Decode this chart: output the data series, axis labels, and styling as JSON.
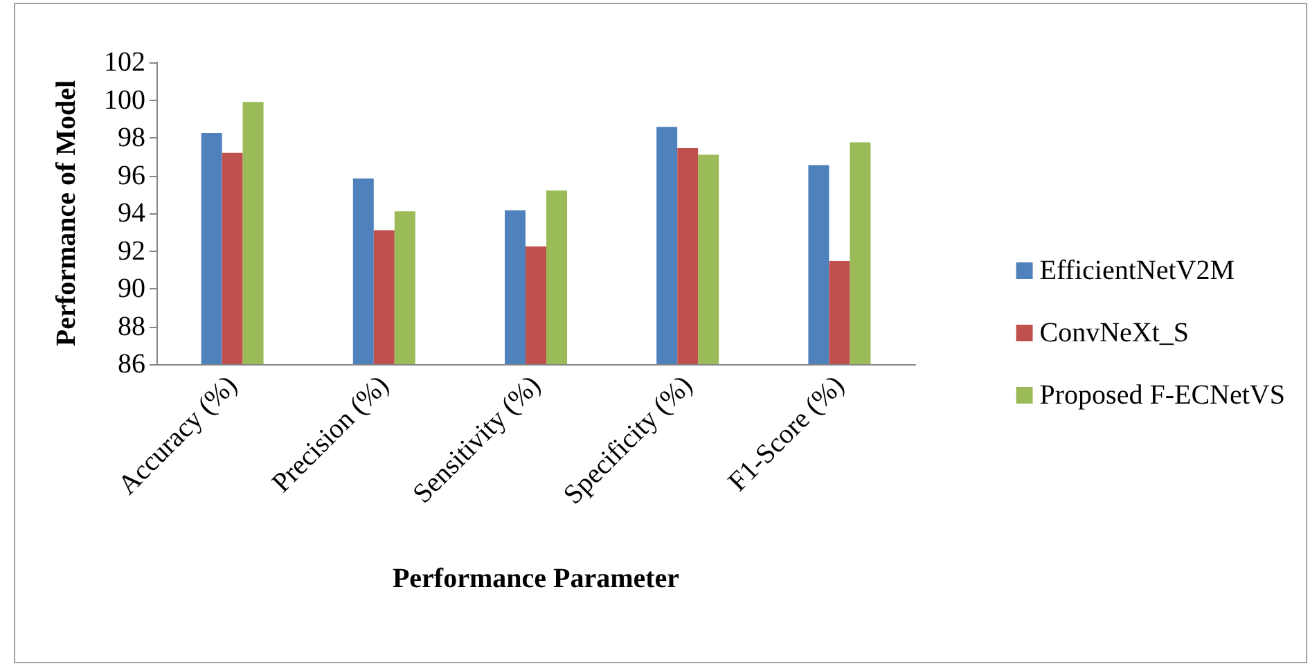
{
  "chart_data": {
    "type": "bar",
    "xlabel": "Performance Parameter",
    "ylabel": "Performance of Model",
    "categories": [
      "Accuracy (%)",
      "Precision (%)",
      "Sensitivity (%)",
      "Specificity (%)",
      "F1-Score (%)"
    ],
    "series": [
      {
        "name": "EfficientNetV2M",
        "color": "#4f81bd",
        "values": [
          98.26,
          95.84,
          94.16,
          98.58,
          96.55
        ]
      },
      {
        "name": "ConvNeXt_S",
        "color": "#c0504d",
        "values": [
          97.2,
          93.1,
          92.24,
          97.45,
          91.47
        ]
      },
      {
        "name": "Proposed F-ECNetVS",
        "color": "#9bbb59",
        "values": [
          99.9,
          94.1,
          95.2,
          97.1,
          97.76
        ]
      }
    ],
    "ylim": [
      86,
      102
    ],
    "yticks": [
      86,
      88,
      90,
      92,
      94,
      96,
      98,
      100,
      102
    ],
    "grid": false,
    "legend": "right"
  }
}
